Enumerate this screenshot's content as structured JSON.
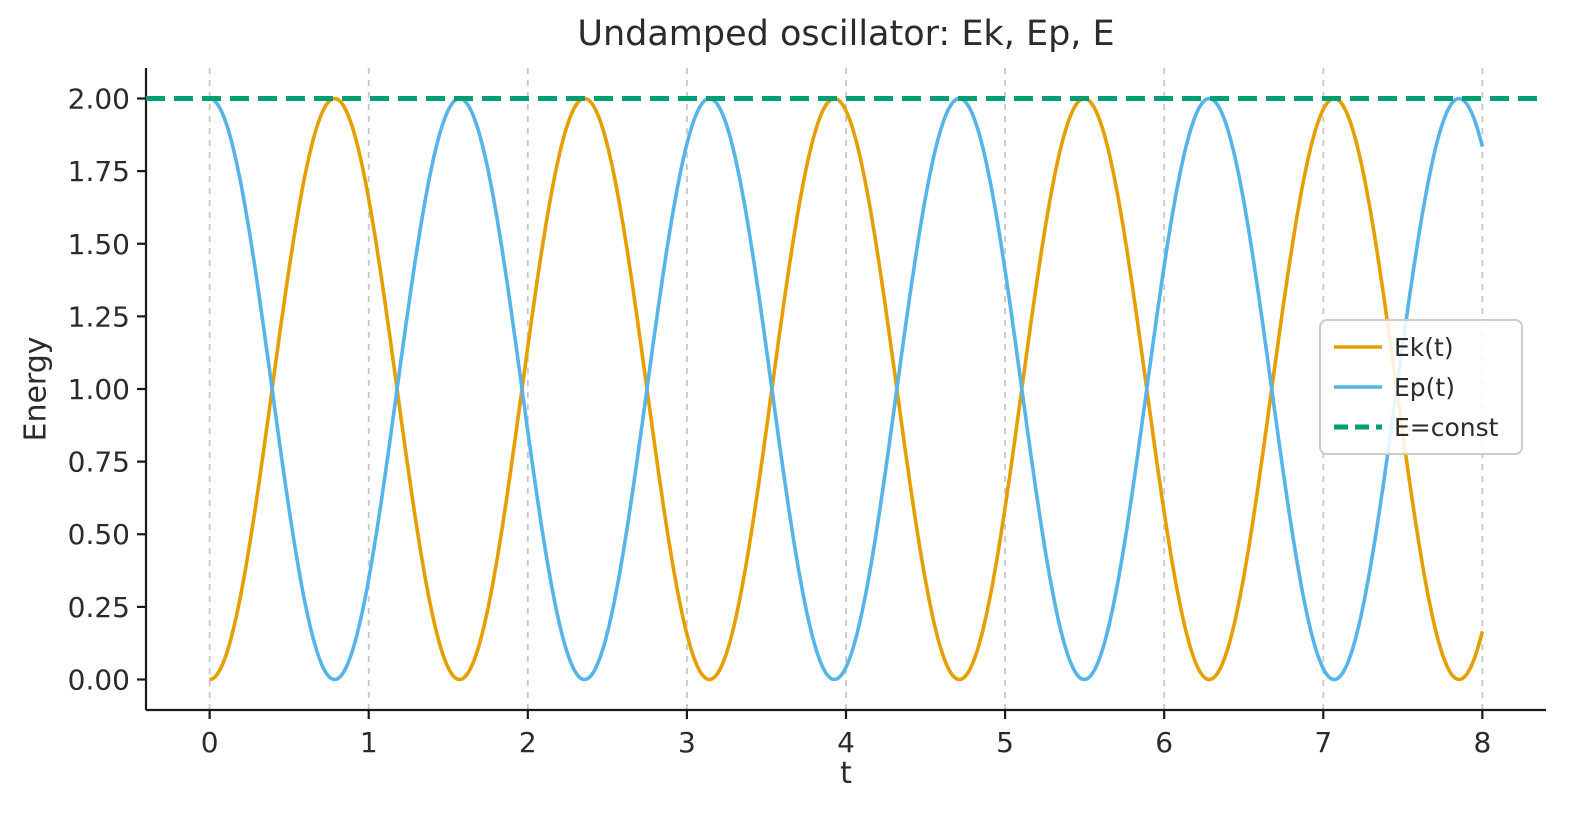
{
  "chart_data": {
    "type": "line",
    "title": "Undamped oscillator: Ek, Ep, E",
    "xlabel": "t",
    "ylabel": "Energy",
    "xlim": [
      -0.4,
      8.4
    ],
    "ylim": [
      -0.105,
      2.105
    ],
    "xticks": [
      0,
      1,
      2,
      3,
      4,
      5,
      6,
      7,
      8
    ],
    "xtick_labels": [
      "0",
      "1",
      "2",
      "3",
      "4",
      "5",
      "6",
      "7",
      "8"
    ],
    "yticks": [
      0.0,
      0.25,
      0.5,
      0.75,
      1.0,
      1.25,
      1.5,
      1.75,
      2.0
    ],
    "ytick_labels": [
      "0.00",
      "0.25",
      "0.50",
      "0.75",
      "1.00",
      "1.25",
      "1.50",
      "1.75",
      "2.00"
    ],
    "grid": {
      "axis": "x",
      "style": "dashed",
      "color": "#c9c9c9"
    },
    "axis_color": "#1a1a1a",
    "text_color": "#2b2b2b",
    "legend": {
      "position": "center right",
      "border_color": "#cccccc",
      "labels": [
        "Ek(t)",
        "Ep(t)",
        "E=const"
      ]
    },
    "series": [
      {
        "name": "Ek(t)",
        "kind": "sin2",
        "amplitude": 2,
        "omega": 2,
        "x_range": [
          0,
          8
        ],
        "color": "#E69F00",
        "style": "solid",
        "width": 3.6
      },
      {
        "name": "Ep(t)",
        "kind": "cos2",
        "amplitude": 2,
        "omega": 2,
        "x_range": [
          0,
          8
        ],
        "color": "#56B4E9",
        "style": "solid",
        "width": 3.6
      },
      {
        "name": "E=const",
        "kind": "const",
        "value": 2,
        "color": "#009E73",
        "style": "dashed",
        "width": 5
      }
    ]
  }
}
